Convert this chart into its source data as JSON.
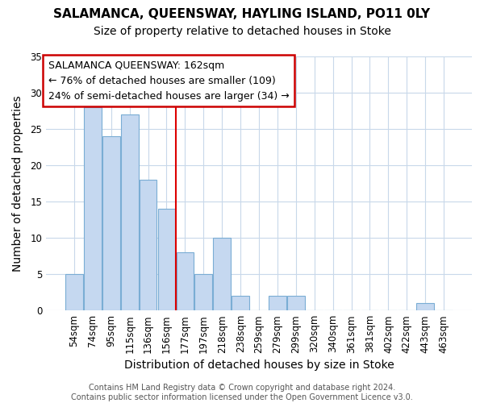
{
  "title": "SALAMANCA, QUEENSWAY, HAYLING ISLAND, PO11 0LY",
  "subtitle": "Size of property relative to detached houses in Stoke",
  "xlabel": "Distribution of detached houses by size in Stoke",
  "ylabel": "Number of detached properties",
  "categories": [
    "54sqm",
    "74sqm",
    "95sqm",
    "115sqm",
    "136sqm",
    "156sqm",
    "177sqm",
    "197sqm",
    "218sqm",
    "238sqm",
    "259sqm",
    "279sqm",
    "299sqm",
    "320sqm",
    "340sqm",
    "361sqm",
    "381sqm",
    "402sqm",
    "422sqm",
    "443sqm",
    "463sqm"
  ],
  "values": [
    5,
    28,
    24,
    27,
    18,
    14,
    8,
    5,
    10,
    2,
    0,
    2,
    2,
    0,
    0,
    0,
    0,
    0,
    0,
    1,
    0
  ],
  "bar_color": "#c5d8f0",
  "bar_edge_color": "#7aadd4",
  "vline_x": 5.5,
  "vline_color": "#dd0000",
  "annotation_text": "SALAMANCA QUEENSWAY: 162sqm\n← 76% of detached houses are smaller (109)\n24% of semi-detached houses are larger (34) →",
  "annotation_box_color": "#ffffff",
  "annotation_box_edge": "#cc0000",
  "ylim": [
    0,
    35
  ],
  "yticks": [
    0,
    5,
    10,
    15,
    20,
    25,
    30,
    35
  ],
  "footer": "Contains HM Land Registry data © Crown copyright and database right 2024.\nContains public sector information licensed under the Open Government Licence v3.0.",
  "bg_color": "#ffffff",
  "plot_bg_color": "#ffffff",
  "grid_color": "#c8d8ea",
  "title_fontsize": 11,
  "subtitle_fontsize": 10,
  "label_fontsize": 10,
  "tick_fontsize": 8.5,
  "footer_fontsize": 7,
  "annotation_fontsize": 9
}
